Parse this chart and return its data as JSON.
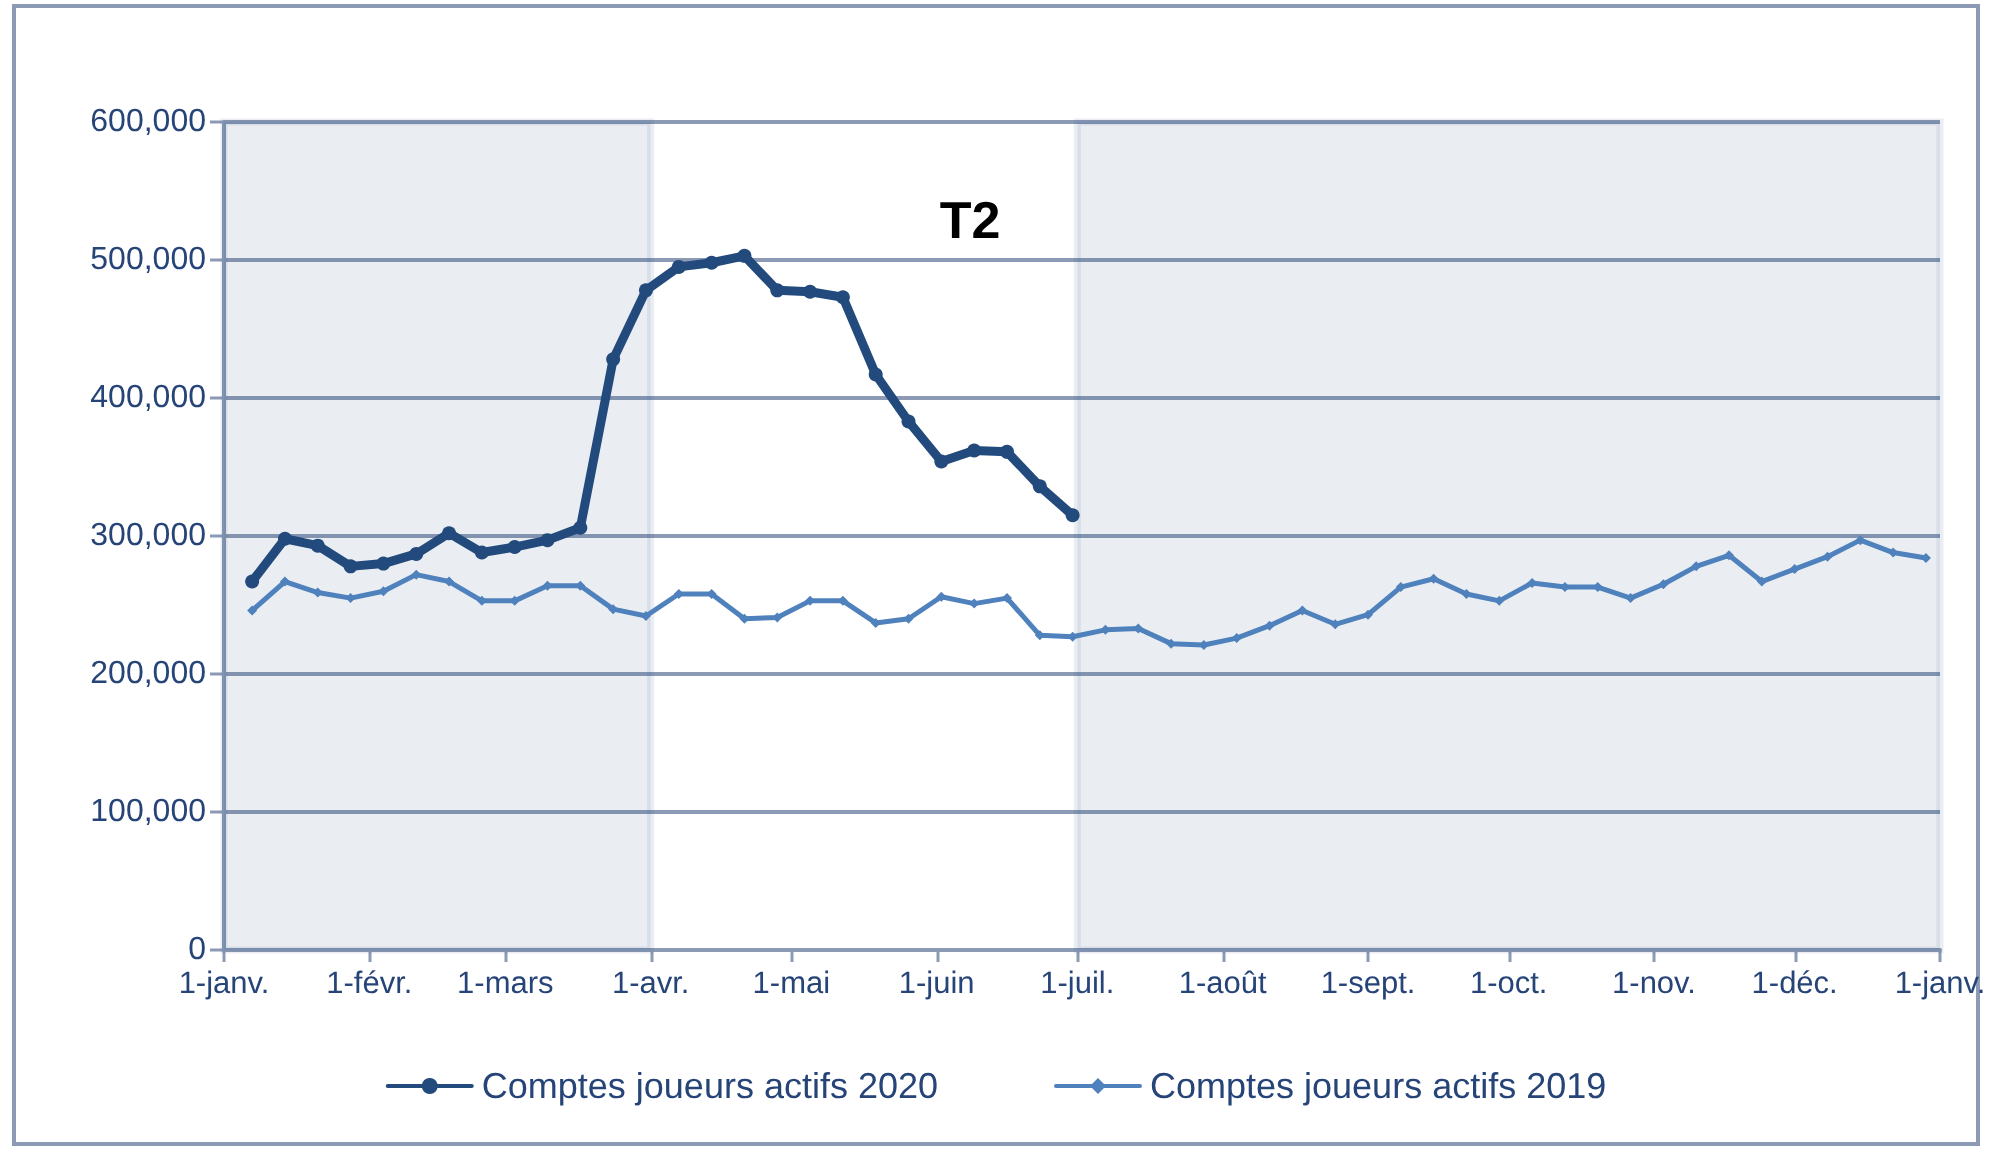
{
  "chart_data": {
    "type": "line",
    "xlim": [
      "2020-01-01",
      "2021-01-01"
    ],
    "xticks": [
      {
        "value": "2020-01-01",
        "label": "1-janv."
      },
      {
        "value": "2020-02-01",
        "label": "1-févr."
      },
      {
        "value": "2020-03-01",
        "label": "1-mars"
      },
      {
        "value": "2020-04-01",
        "label": "1-avr."
      },
      {
        "value": "2020-05-01",
        "label": "1-mai"
      },
      {
        "value": "2020-06-01",
        "label": "1-juin"
      },
      {
        "value": "2020-07-01",
        "label": "1-juil."
      },
      {
        "value": "2020-08-01",
        "label": "1-août"
      },
      {
        "value": "2020-09-01",
        "label": "1-sept."
      },
      {
        "value": "2020-10-01",
        "label": "1-oct."
      },
      {
        "value": "2020-11-01",
        "label": "1-nov."
      },
      {
        "value": "2020-12-01",
        "label": "1-déc."
      },
      {
        "value": "2021-01-01",
        "label": "1-janv."
      }
    ],
    "ylim": [
      0,
      600000
    ],
    "yticks": [
      {
        "value": 0,
        "label": "0"
      },
      {
        "value": 100000,
        "label": "100,000"
      },
      {
        "value": 200000,
        "label": "200,000"
      },
      {
        "value": 300000,
        "label": "300,000"
      },
      {
        "value": 400000,
        "label": "400,000"
      },
      {
        "value": 500000,
        "label": "500,000"
      },
      {
        "value": 600000,
        "label": "600,000"
      }
    ],
    "grid": "y",
    "legend": "bottom",
    "line_style": "solid",
    "series": [
      {
        "name": "Comptes joueurs actifs 2020",
        "color": "#234a7c",
        "marker": "circle",
        "x": [
          "2020-01-07",
          "2020-01-14",
          "2020-01-21",
          "2020-01-28",
          "2020-02-04",
          "2020-02-11",
          "2020-02-18",
          "2020-02-25",
          "2020-03-03",
          "2020-03-10",
          "2020-03-17",
          "2020-03-24",
          "2020-03-31",
          "2020-04-07",
          "2020-04-14",
          "2020-04-21",
          "2020-04-28",
          "2020-05-05",
          "2020-05-12",
          "2020-05-19",
          "2020-05-26",
          "2020-06-02",
          "2020-06-09",
          "2020-06-16",
          "2020-06-23",
          "2020-06-30"
        ],
        "values": [
          267000,
          298000,
          293000,
          278000,
          280000,
          287000,
          302000,
          288000,
          292000,
          297000,
          306000,
          428000,
          478000,
          495000,
          498000,
          503000,
          478000,
          477000,
          473000,
          417000,
          383000,
          354000,
          362000,
          361000,
          336000,
          315000
        ]
      },
      {
        "name": "Comptes joueurs actifs 2019",
        "color": "#4f81bd",
        "marker": "diamond",
        "x": [
          "2020-01-07",
          "2020-01-14",
          "2020-01-21",
          "2020-01-28",
          "2020-02-04",
          "2020-02-11",
          "2020-02-18",
          "2020-02-25",
          "2020-03-03",
          "2020-03-10",
          "2020-03-17",
          "2020-03-24",
          "2020-03-31",
          "2020-04-07",
          "2020-04-14",
          "2020-04-21",
          "2020-04-28",
          "2020-05-05",
          "2020-05-12",
          "2020-05-19",
          "2020-05-26",
          "2020-06-02",
          "2020-06-09",
          "2020-06-16",
          "2020-06-23",
          "2020-06-30",
          "2020-07-07",
          "2020-07-14",
          "2020-07-21",
          "2020-07-28",
          "2020-08-04",
          "2020-08-11",
          "2020-08-18",
          "2020-08-25",
          "2020-09-01",
          "2020-09-08",
          "2020-09-15",
          "2020-09-22",
          "2020-09-29",
          "2020-10-06",
          "2020-10-13",
          "2020-10-20",
          "2020-10-27",
          "2020-11-03",
          "2020-11-10",
          "2020-11-17",
          "2020-11-24",
          "2020-12-01",
          "2020-12-08",
          "2020-12-15",
          "2020-12-22",
          "2020-12-29"
        ],
        "values": [
          246000,
          267000,
          259000,
          255000,
          260000,
          272000,
          267000,
          253000,
          253000,
          264000,
          264000,
          247000,
          242000,
          258000,
          258000,
          240000,
          241000,
          253000,
          253000,
          237000,
          240000,
          256000,
          251000,
          255000,
          228000,
          227000,
          232000,
          233000,
          222000,
          221000,
          226000,
          235000,
          246000,
          236000,
          243000,
          263000,
          269000,
          258000,
          253000,
          266000,
          263000,
          263000,
          255000,
          265000,
          278000,
          286000,
          267000,
          276000,
          285000,
          297000,
          288000,
          284000
        ]
      }
    ],
    "bands": [
      {
        "axis": "x",
        "from": "2020-01-01",
        "to": "2020-04-01",
        "color": "#2f5587"
      },
      {
        "axis": "x",
        "from": "2020-07-01",
        "to": "2021-01-01",
        "color": "#2f5587"
      }
    ],
    "annotations": [
      "T2"
    ]
  }
}
